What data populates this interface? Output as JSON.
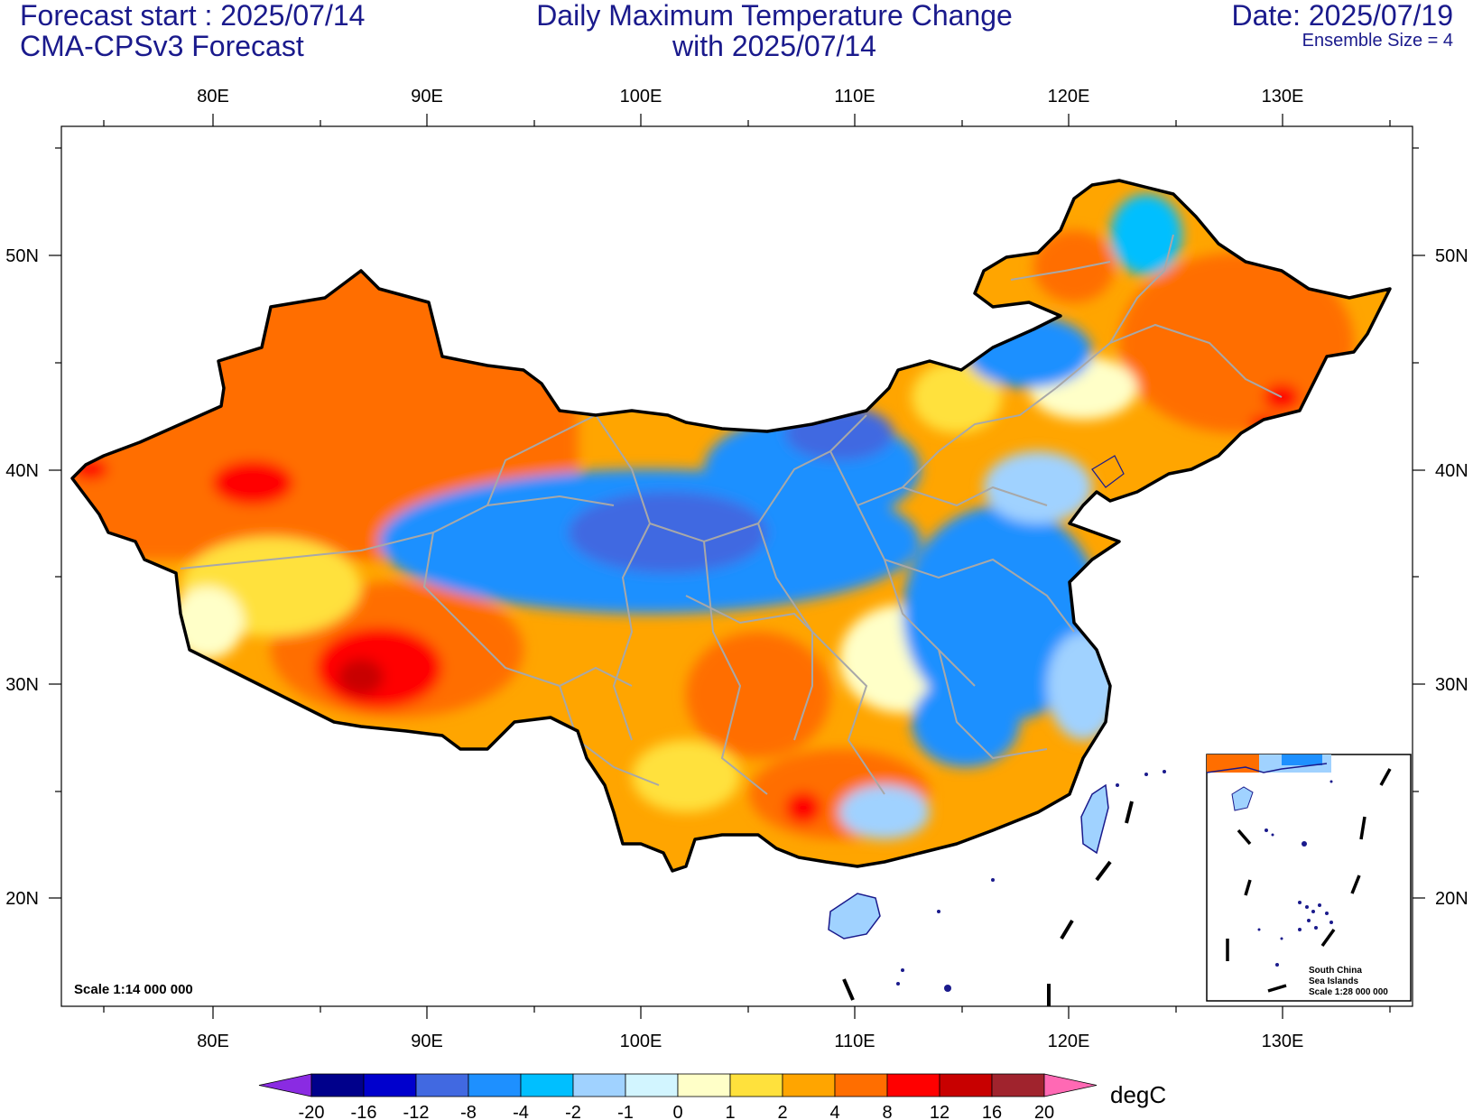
{
  "header": {
    "forecast_start": "Forecast start : 2025/07/14",
    "model": "CMA-CPSv3 Forecast",
    "title_line1": "Daily Maximum Temperature Change",
    "title_line2": "with 2025/07/14",
    "date": "Date: 2025/07/19",
    "ensemble": "Ensemble Size = 4"
  },
  "axes": {
    "lon_labels": [
      "80E",
      "90E",
      "100E",
      "110E",
      "120E",
      "130E"
    ],
    "lat_labels": [
      "50N",
      "40N",
      "30N",
      "20N"
    ]
  },
  "scale_note": "Scale 1:14 000 000",
  "inset": {
    "line1": "South China",
    "line2": "Sea Islands",
    "line3": "Scale 1:28 000 000"
  },
  "colorbar": {
    "unit": "degC",
    "labels": [
      "-20",
      "-16",
      "-12",
      "-8",
      "-4",
      "-2",
      "-1",
      "0",
      "1",
      "2",
      "4",
      "8",
      "12",
      "16",
      "20"
    ],
    "colors": [
      "#8a2be2",
      "#00008b",
      "#0000cd",
      "#4169e1",
      "#1e90ff",
      "#00bfff",
      "#a0d2ff",
      "#d2f5ff",
      "#ffffc8",
      "#ffe13c",
      "#ffa500",
      "#ff6e00",
      "#ff0000",
      "#c80000",
      "#a0232d",
      "#ff69b4"
    ]
  }
}
